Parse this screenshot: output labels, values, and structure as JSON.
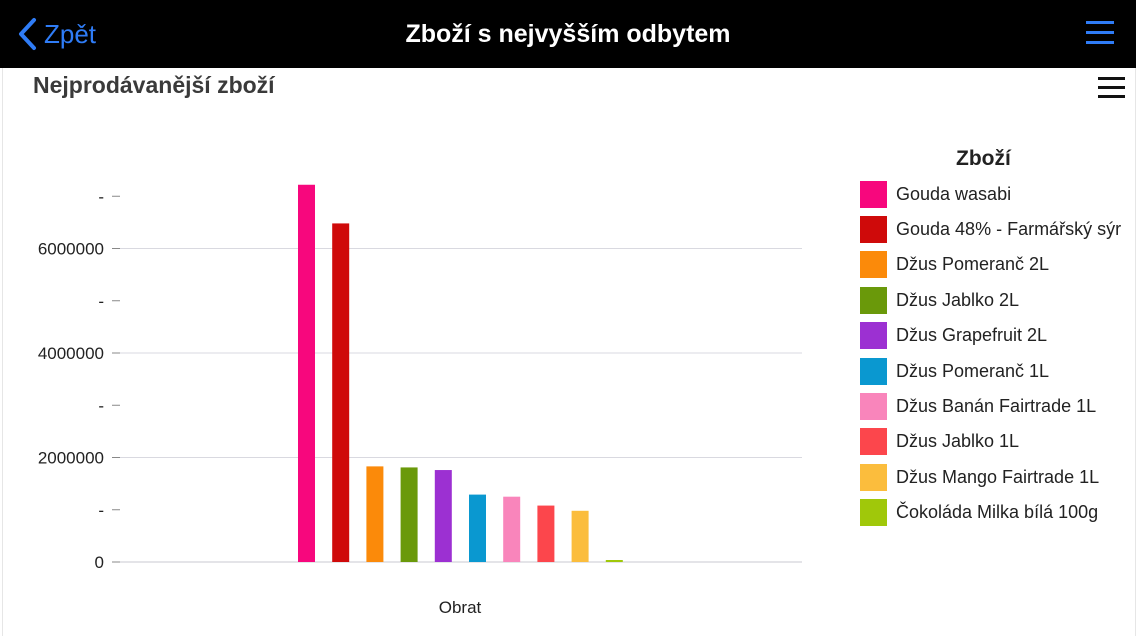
{
  "navbar": {
    "back_label": "Zpět",
    "title": "Zboží s nejvyšším odbytem",
    "accent": "#2f7cf6"
  },
  "icons": {
    "back": "chevron-left-icon",
    "nav_menu": "hamburger-menu-icon",
    "chart_menu": "hamburger-menu-icon"
  },
  "chart_data": {
    "type": "bar",
    "title": "Nejprodávanější zboží",
    "xlabel": "Obrat",
    "ylabel": "",
    "categories": [
      "Obrat"
    ],
    "ylim": [
      0,
      7500000
    ],
    "yticks": [
      {
        "value": 0,
        "label": "0"
      },
      {
        "value": 1000000,
        "label": "-"
      },
      {
        "value": 2000000,
        "label": "2000000"
      },
      {
        "value": 3000000,
        "label": "-"
      },
      {
        "value": 4000000,
        "label": "4000000"
      },
      {
        "value": 5000000,
        "label": "-"
      },
      {
        "value": 6000000,
        "label": "6000000"
      },
      {
        "value": 7000000,
        "label": "-"
      }
    ],
    "gridlines": [
      2000000,
      4000000,
      6000000
    ],
    "legend_title": "Zboží",
    "legend_position": "right",
    "series": [
      {
        "name": "Gouda wasabi",
        "values": [
          7220000
        ],
        "color": "#f7077d"
      },
      {
        "name": "Gouda 48% - Farmářský sýr",
        "values": [
          6480000
        ],
        "color": "#cf0a0a"
      },
      {
        "name": "Džus Pomeranč 2L",
        "values": [
          1830000
        ],
        "color": "#fb8a0a"
      },
      {
        "name": "Džus Jablko 2L",
        "values": [
          1810000
        ],
        "color": "#6a990a"
      },
      {
        "name": "Džus Grapefruit 2L",
        "values": [
          1760000
        ],
        "color": "#9c30d2"
      },
      {
        "name": "Džus Pomeranč 1L",
        "values": [
          1290000
        ],
        "color": "#0a98d0"
      },
      {
        "name": "Džus Banán Fairtrade 1L",
        "values": [
          1250000
        ],
        "color": "#f985bb"
      },
      {
        "name": "Džus Jablko 1L",
        "values": [
          1080000
        ],
        "color": "#fc464c"
      },
      {
        "name": "Džus Mango Fairtrade 1L",
        "values": [
          980000
        ],
        "color": "#fbbd3d"
      },
      {
        "name": "Čokoláda Milka bílá 100g",
        "values": [
          30000
        ],
        "color": "#a0c80a"
      }
    ]
  }
}
